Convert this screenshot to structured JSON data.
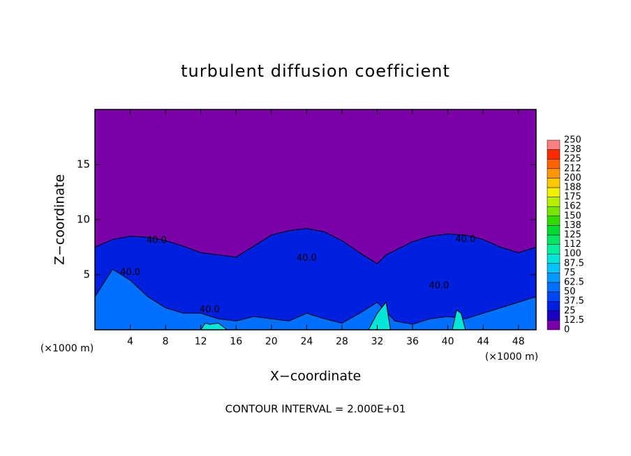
{
  "chart_data": {
    "type": "contour",
    "title": "turbulent diffusion coefficient",
    "xlabel": "X−coordinate",
    "ylabel": "Z−coordinate",
    "x_unit_label": "(×1000 m)",
    "footer": "CONTOUR INTERVAL = 2.000E+01",
    "xlim": [
      0,
      50
    ],
    "xticks": [
      4,
      8,
      12,
      16,
      20,
      24,
      28,
      32,
      36,
      40,
      44,
      48
    ],
    "ylim": [
      0,
      20
    ],
    "yticks": [
      5,
      10,
      15
    ],
    "background_color": "#7a00a8",
    "layers": [
      {
        "level": 25,
        "x": [
          0,
          2,
          4,
          6,
          8,
          10,
          12,
          14,
          16,
          18,
          20,
          22,
          24,
          26,
          28,
          30,
          32,
          33,
          34,
          36,
          38,
          40,
          42,
          44,
          46,
          48,
          50
        ],
        "z": [
          7.5,
          8.2,
          8.5,
          8.4,
          8.1,
          7.6,
          7.0,
          6.8,
          6.6,
          7.6,
          8.6,
          9.0,
          9.2,
          8.9,
          8.1,
          7.0,
          6.0,
          6.8,
          7.2,
          8.0,
          8.5,
          8.7,
          8.6,
          8.2,
          7.5,
          7.0,
          7.5
        ]
      },
      {
        "level": 50,
        "x": [
          0,
          2,
          4,
          6,
          8,
          10,
          12,
          14,
          16,
          18,
          20,
          22,
          24,
          26,
          28,
          30,
          32,
          34,
          36,
          38,
          40,
          42,
          44,
          46,
          48,
          50
        ],
        "z": [
          3.0,
          5.5,
          4.5,
          3.0,
          2.0,
          1.5,
          1.5,
          1.0,
          0.8,
          1.2,
          1.0,
          0.8,
          1.5,
          1.0,
          0.6,
          1.5,
          2.5,
          0.8,
          0.5,
          1.0,
          1.2,
          1.0,
          1.5,
          2.0,
          2.5,
          3.0
        ]
      },
      {
        "level": 87.5,
        "x": [
          12,
          12.5,
          13,
          14,
          15,
          31,
          32,
          33,
          33.5,
          40.5,
          41,
          41.5,
          42
        ],
        "z": [
          0,
          0.6,
          0.5,
          0.6,
          0,
          0,
          1.5,
          2.5,
          0,
          0,
          1.8,
          1.5,
          0
        ]
      }
    ],
    "contour_labels": [
      {
        "x": 7,
        "z": 8.1,
        "label": "40.0"
      },
      {
        "x": 4,
        "z": 5.2,
        "label": "40.0"
      },
      {
        "x": 13,
        "z": 1.8,
        "label": "40.0"
      },
      {
        "x": 24,
        "z": 6.5,
        "label": "40.0"
      },
      {
        "x": 42,
        "z": 8.2,
        "label": "40.0"
      },
      {
        "x": 39,
        "z": 4.0,
        "label": "40.0"
      }
    ],
    "colorbar": {
      "levels": [
        0,
        12.5,
        25,
        37.5,
        50,
        62.5,
        75,
        87.5,
        100,
        112,
        125,
        138,
        150,
        162,
        175,
        188,
        200,
        212,
        225,
        238,
        250
      ],
      "colors": [
        "#7a00a8",
        "#1a00c0",
        "#0020e0",
        "#0046f5",
        "#0070ff",
        "#009aff",
        "#00c4ff",
        "#00e6d6",
        "#00f0a0",
        "#00e664",
        "#00dc32",
        "#30dc00",
        "#78e600",
        "#b4f000",
        "#f0f000",
        "#ffc800",
        "#ff9600",
        "#ff6400",
        "#ff2a00",
        "#ff8080"
      ]
    }
  }
}
